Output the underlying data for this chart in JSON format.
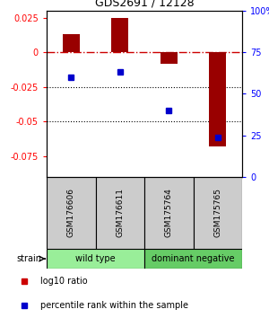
{
  "title": "GDS2691 / 12128",
  "samples": [
    "GSM176606",
    "GSM176611",
    "GSM175764",
    "GSM175765"
  ],
  "log10_ratio": [
    0.013,
    0.025,
    -0.008,
    -0.068
  ],
  "percentile_rank": [
    60,
    63,
    40,
    24
  ],
  "bar_color": "#990000",
  "dot_color": "#0000cc",
  "ylim_left": [
    -0.09,
    0.03
  ],
  "ylim_right": [
    0,
    100
  ],
  "yticks_left": [
    0.025,
    0,
    -0.025,
    -0.05,
    -0.075
  ],
  "yticks_right": [
    100,
    75,
    50,
    25,
    0
  ],
  "groups": [
    {
      "label": "wild type",
      "samples": [
        0,
        1
      ],
      "color": "#99ee99"
    },
    {
      "label": "dominant negative",
      "samples": [
        2,
        3
      ],
      "color": "#66cc66"
    }
  ],
  "strain_label": "strain",
  "legend_items": [
    {
      "color": "#cc0000",
      "label": "log10 ratio"
    },
    {
      "color": "#0000cc",
      "label": "percentile rank within the sample"
    }
  ],
  "bar_width": 0.35,
  "background_color": "#ffffff",
  "dotted_line_color": "#000000",
  "zero_line_color": "#cc0000",
  "sample_box_color": "#cccccc",
  "sample_text_color": "#000000"
}
